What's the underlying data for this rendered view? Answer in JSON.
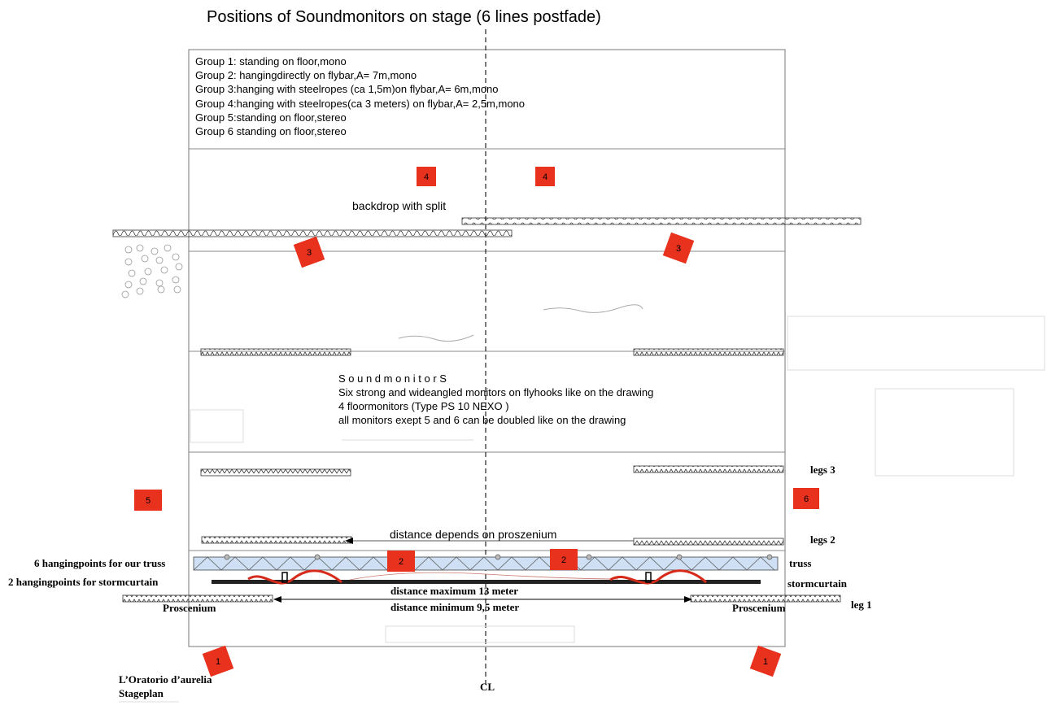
{
  "title": "Positions of Soundmonitors  on stage (6 lines postfade)",
  "groups": [
    "Group 1: standing on floor,mono",
    "Group 2: hangingdirectly on flybar,A= 7m,mono",
    "Group 3:hanging with steelropes (ca 1,5m)on flybar,A= 6m,mono",
    "Group 4:hanging with steelropes(ca 3 meters) on flybar,A= 2,5m,mono",
    "Group 5:standing on floor,stereo",
    "Group 6 standing on floor,stereo"
  ],
  "backdrop": "backdrop   with   split",
  "soundmonitors": {
    "heading": "S o u n d m o n i t o r S",
    "line1": "Six  strong and wideangled monitors on flyhooks like on the drawing",
    "line2": "4 floormonitors  (Type PS 10 NEXO )",
    "line3": "all monitors exept  5 and 6 can be doubled like on the drawing"
  },
  "labels": {
    "legs3": "legs 3",
    "legs2": "legs 2",
    "leg1": "leg 1",
    "distance_proscenium": "distance depends on proszenium",
    "hanging_truss": "6 hangingpoints for our  truss",
    "hanging_storm": "2 hangingpoints for   stormcurtain",
    "truss": "truss",
    "stormcurtain": "stormcurtain",
    "dist_max": "distance  maximum 13  meter",
    "dist_min": "distance  minimum  9,5 meter",
    "proscenium_left": "Proscenium",
    "proscenium_right": "Proscenium",
    "plan_title_1": "L’Oratorio d’aurelia",
    "plan_title_2": "Stageplan",
    "cl": "CL"
  },
  "monitors": [
    {
      "id": "m4a",
      "label": "4"
    },
    {
      "id": "m4b",
      "label": "4"
    },
    {
      "id": "m3a",
      "label": "3"
    },
    {
      "id": "m3b",
      "label": "3"
    },
    {
      "id": "m5",
      "label": "5"
    },
    {
      "id": "m6",
      "label": "6"
    },
    {
      "id": "m2a",
      "label": "2"
    },
    {
      "id": "m2b",
      "label": "2"
    },
    {
      "id": "m1a",
      "label": "1"
    },
    {
      "id": "m1b",
      "label": "1"
    }
  ],
  "colors": {
    "monitor": "#e8321e",
    "truss_fill": "#cfe0f5",
    "cable": "#d62a1a",
    "line": "#777777"
  }
}
